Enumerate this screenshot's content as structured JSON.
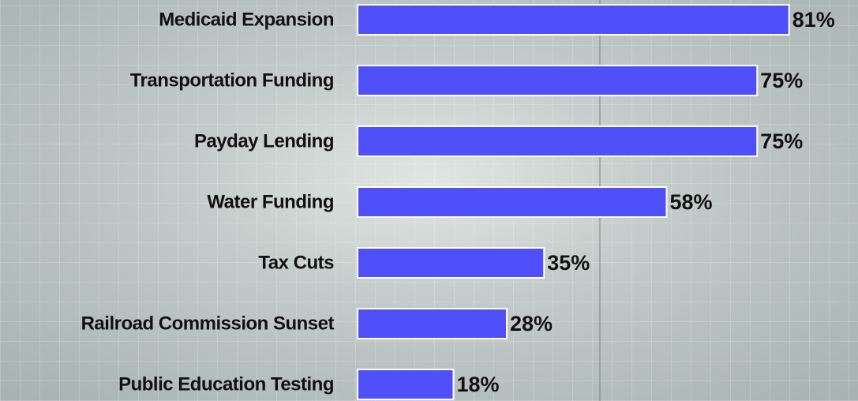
{
  "chart_data": {
    "type": "bar",
    "orientation": "horizontal",
    "categories": [
      "Medicaid Expansion",
      "Transportation Funding",
      "Payday Lending",
      "Water Funding",
      "Tax Cuts",
      "Railroad Commission Sunset",
      "Public Education Testing"
    ],
    "values": [
      81,
      75,
      75,
      58,
      35,
      28,
      18
    ],
    "value_labels": [
      "81%",
      "75%",
      "75%",
      "58%",
      "35%",
      "28%",
      "18%"
    ],
    "color": "#5050fb"
  }
}
